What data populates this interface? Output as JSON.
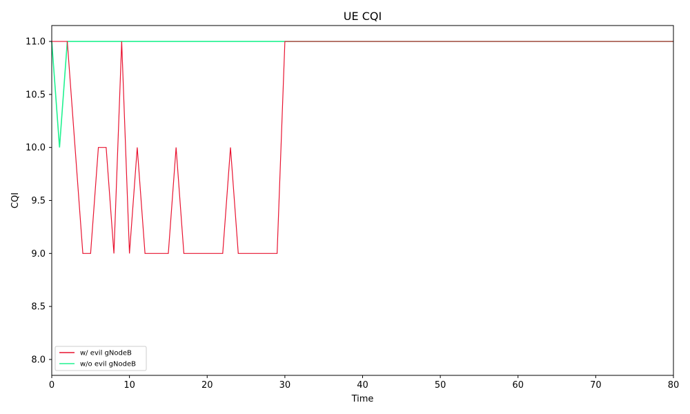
{
  "chart_data": {
    "type": "line",
    "title": "UE CQI",
    "xlabel": "Time",
    "ylabel": "CQI",
    "xlim": [
      0,
      80
    ],
    "ylim": [
      7.85,
      11.15
    ],
    "xticks": [
      0,
      10,
      20,
      30,
      40,
      50,
      60,
      70,
      80
    ],
    "yticks": [
      8.0,
      8.5,
      9.0,
      9.5,
      10.0,
      10.5,
      11.0
    ],
    "xtick_labels": [
      "0",
      "10",
      "20",
      "30",
      "40",
      "50",
      "60",
      "70",
      "80"
    ],
    "ytick_labels": [
      "8.0",
      "8.5",
      "9.0",
      "9.5",
      "10.0",
      "10.5",
      "11.0"
    ],
    "grid": false,
    "legend_position": "lower-left",
    "series": [
      {
        "name": "w/ evil gNodeB",
        "color": "#e8122f",
        "x": [
          0,
          1,
          2,
          3,
          4,
          5,
          6,
          7,
          8,
          9,
          10,
          11,
          12,
          13,
          14,
          15,
          16,
          17,
          18,
          19,
          20,
          21,
          22,
          23,
          24,
          25,
          26,
          27,
          28,
          29,
          30,
          31,
          32,
          33,
          34,
          35,
          36,
          37,
          38,
          39,
          40,
          41,
          42,
          43,
          44,
          45,
          46,
          47,
          48,
          49,
          50,
          51,
          52,
          53,
          54,
          55,
          56,
          57,
          58,
          59,
          60,
          61,
          62,
          63,
          64,
          65,
          66,
          67,
          68,
          69,
          70,
          71,
          72,
          73,
          74,
          75,
          76,
          77,
          78,
          79,
          80
        ],
        "y": [
          11,
          11,
          11,
          10,
          9,
          9,
          10,
          10,
          9,
          11,
          9,
          10,
          9,
          9,
          9,
          9,
          10,
          9,
          9,
          9,
          9,
          9,
          9,
          10,
          9,
          9,
          9,
          9,
          9,
          9,
          11,
          11,
          11,
          11,
          11,
          11,
          11,
          11,
          11,
          11,
          11,
          11,
          11,
          11,
          11,
          11,
          11,
          11,
          11,
          11,
          11,
          11,
          11,
          11,
          11,
          11,
          11,
          11,
          11,
          11,
          11,
          11,
          11,
          11,
          11,
          11,
          11,
          11,
          11,
          11,
          11,
          11,
          11,
          11,
          11,
          11,
          11,
          11,
          11,
          11,
          11
        ]
      },
      {
        "name": "w/o evil gNodeB",
        "color": "#1ef28f",
        "x": [
          0,
          1,
          2,
          3,
          4,
          5,
          6,
          7,
          8,
          9,
          10,
          11,
          12,
          13,
          14,
          15,
          16,
          17,
          18,
          19,
          20,
          21,
          22,
          23,
          24,
          25,
          26,
          27,
          28,
          29,
          30,
          31,
          32,
          33,
          34,
          35,
          36,
          37,
          38,
          39,
          40,
          41,
          42,
          43,
          44,
          45,
          46,
          47,
          48,
          49,
          50,
          51,
          52,
          53,
          54,
          55,
          56,
          57,
          58,
          59,
          60,
          61,
          62,
          63,
          64,
          65,
          66,
          67,
          68,
          69,
          70,
          71,
          72,
          73,
          74,
          75,
          76,
          77,
          78,
          79,
          80
        ],
        "y": [
          11,
          10,
          11,
          11,
          11,
          11,
          11,
          11,
          11,
          11,
          11,
          11,
          11,
          11,
          11,
          11,
          11,
          11,
          11,
          11,
          11,
          11,
          11,
          11,
          11,
          11,
          11,
          11,
          11,
          11,
          11,
          11,
          11,
          11,
          11,
          11,
          11,
          11,
          11,
          11,
          11,
          11,
          11,
          11,
          11,
          11,
          11,
          11,
          11,
          11,
          11,
          11,
          11,
          11,
          11,
          11,
          11,
          11,
          11,
          11,
          11,
          11,
          11,
          11,
          11,
          11,
          11,
          11,
          11,
          11,
          11,
          11,
          11,
          11,
          11,
          11,
          11,
          11,
          11,
          11,
          11
        ]
      }
    ]
  }
}
